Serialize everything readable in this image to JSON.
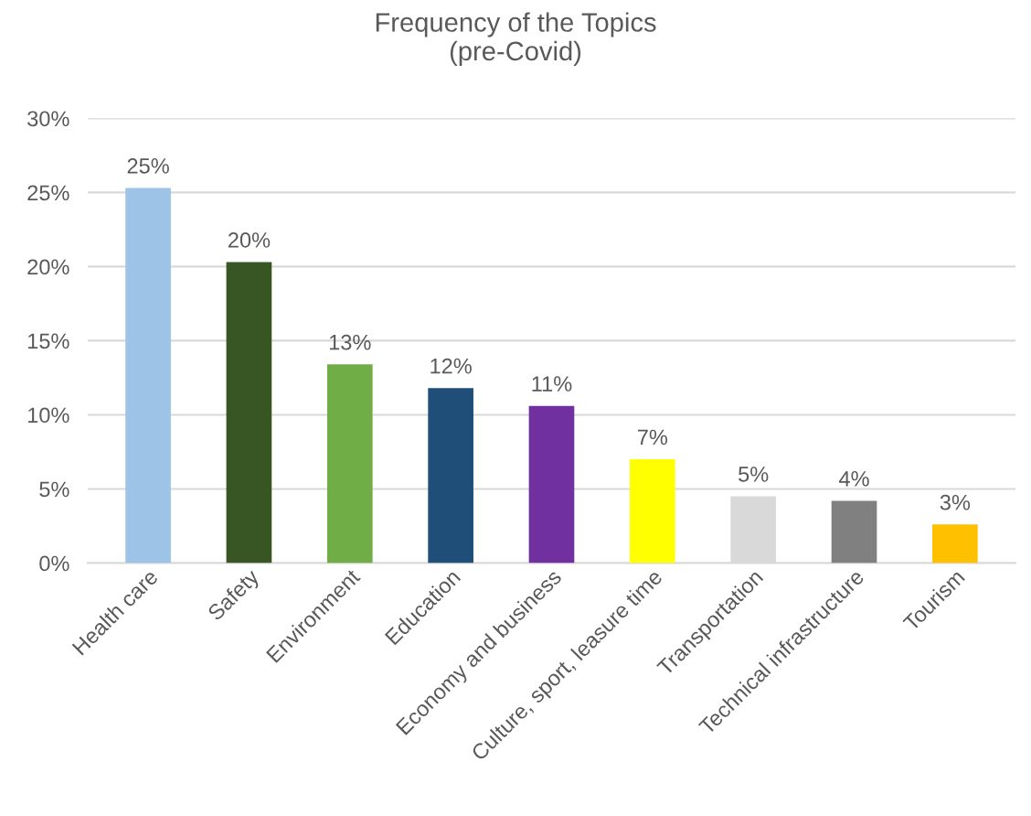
{
  "chart_data": {
    "type": "bar",
    "title": "Frequency of the Topics\n(pre-Covid)",
    "categories": [
      "Health care",
      "Safety",
      "Environment",
      "Education",
      "Economy and business",
      "Culture, sport, leasure time",
      "Transportation",
      "Technical infrastructure",
      "Tourism"
    ],
    "values": [
      25.3,
      20.3,
      13.4,
      11.8,
      10.6,
      7.0,
      4.5,
      4.2,
      2.6
    ],
    "colors": [
      "#9dc3e6",
      "#375623",
      "#70ad47",
      "#1f4e79",
      "#7030a0",
      "#ffff00",
      "#d9d9d9",
      "#808080",
      "#ffc000"
    ],
    "value_labels": [
      "25%",
      "20%",
      "13%",
      "12%",
      "11%",
      "7%",
      "5%",
      "4%",
      "3%"
    ],
    "ylim": [
      0,
      30
    ],
    "yticks": [
      {
        "value": 0,
        "label": "0%"
      },
      {
        "value": 5,
        "label": "5%"
      },
      {
        "value": 10,
        "label": "10%"
      },
      {
        "value": 15,
        "label": "15%"
      },
      {
        "value": 20,
        "label": "20%"
      },
      {
        "value": 25,
        "label": "25%"
      },
      {
        "value": 30,
        "label": "30%"
      }
    ],
    "grid": "y",
    "legend": false
  }
}
